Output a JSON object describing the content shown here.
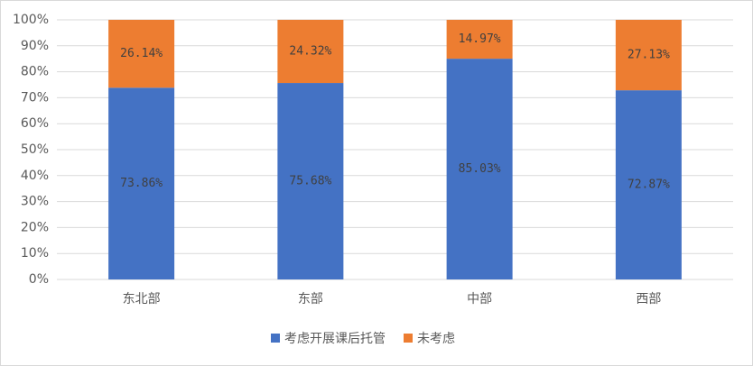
{
  "chart_data": {
    "type": "bar",
    "stacked": true,
    "categories": [
      "东北部",
      "东部",
      "中部",
      "西部"
    ],
    "series": [
      {
        "name": "考虑开展课后托管",
        "color": "#4472c4",
        "values": [
          73.86,
          75.68,
          85.03,
          72.87
        ],
        "value_labels": [
          "73.86%",
          "75.68%",
          "85.03%",
          "72.87%"
        ]
      },
      {
        "name": "未考虑",
        "color": "#ed7d31",
        "values": [
          26.14,
          24.32,
          14.97,
          27.13
        ],
        "value_labels": [
          "26.14%",
          "24.32%",
          "14.97%",
          "27.13%"
        ]
      }
    ],
    "ylim": [
      0,
      100
    ],
    "yticks": [
      {
        "value": 0,
        "label": "0%"
      },
      {
        "value": 10,
        "label": "10%"
      },
      {
        "value": 20,
        "label": "20%"
      },
      {
        "value": 30,
        "label": "30%"
      },
      {
        "value": 40,
        "label": "40%"
      },
      {
        "value": 50,
        "label": "50%"
      },
      {
        "value": 60,
        "label": "60%"
      },
      {
        "value": 70,
        "label": "70%"
      },
      {
        "value": 80,
        "label": "80%"
      },
      {
        "value": 90,
        "label": "90%"
      },
      {
        "value": 100,
        "label": "100%"
      }
    ],
    "grid": true,
    "legend": "bottom"
  }
}
